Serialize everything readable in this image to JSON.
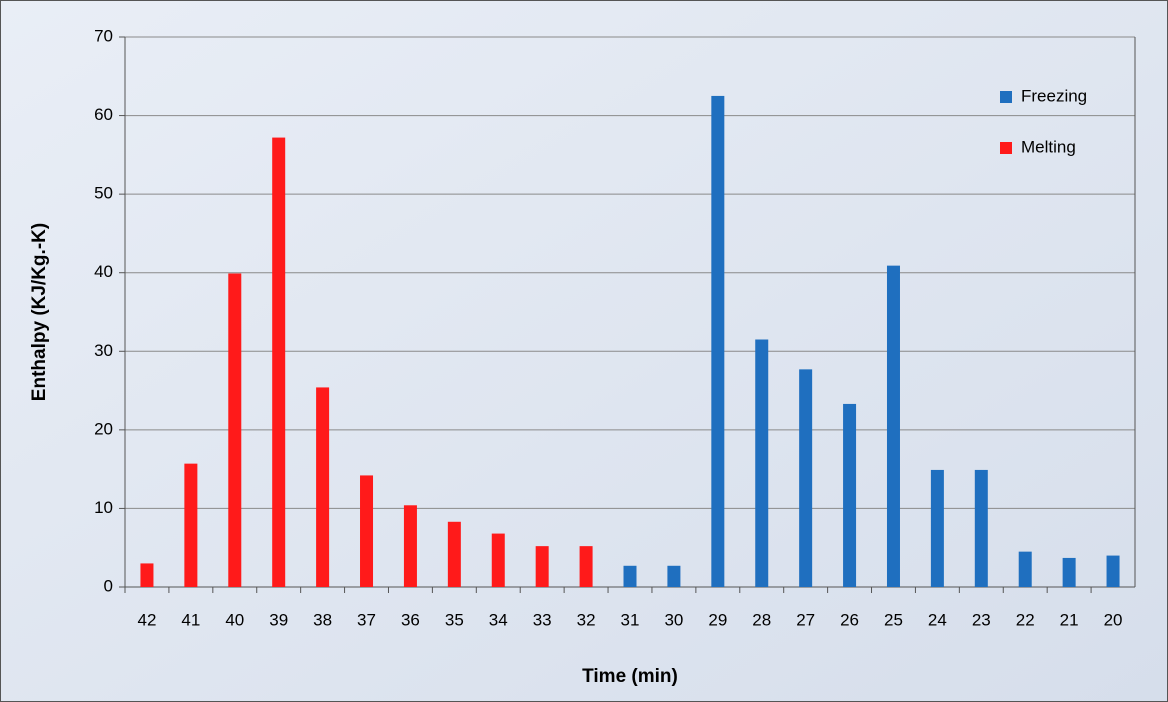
{
  "chart_data": {
    "type": "bar",
    "categories": [
      "42",
      "41",
      "40",
      "39",
      "38",
      "37",
      "36",
      "35",
      "34",
      "33",
      "32",
      "31",
      "30",
      "29",
      "28",
      "27",
      "26",
      "25",
      "24",
      "23",
      "22",
      "21",
      "20"
    ],
    "series": [
      {
        "name": "Freezing",
        "color": "#1f6fbf",
        "values": [
          null,
          null,
          null,
          null,
          null,
          null,
          null,
          null,
          null,
          null,
          null,
          2.7,
          2.7,
          62.5,
          31.5,
          27.7,
          23.3,
          40.9,
          14.9,
          14.9,
          4.5,
          3.7,
          4.0
        ]
      },
      {
        "name": "Melting",
        "color": "#ff1a1a",
        "values": [
          3.0,
          15.7,
          39.9,
          57.2,
          25.4,
          14.2,
          10.4,
          8.3,
          6.8,
          5.2,
          5.2,
          null,
          null,
          null,
          null,
          null,
          null,
          null,
          null,
          null,
          null,
          null,
          null
        ]
      }
    ],
    "x_label": "Time (min)",
    "y_label": "Enthalpy (KJ/Kg.-K)",
    "ylim": [
      0,
      70
    ],
    "yticks": [
      0,
      10,
      20,
      30,
      40,
      50,
      60,
      70
    ],
    "grid": true,
    "legend": "top-right"
  }
}
